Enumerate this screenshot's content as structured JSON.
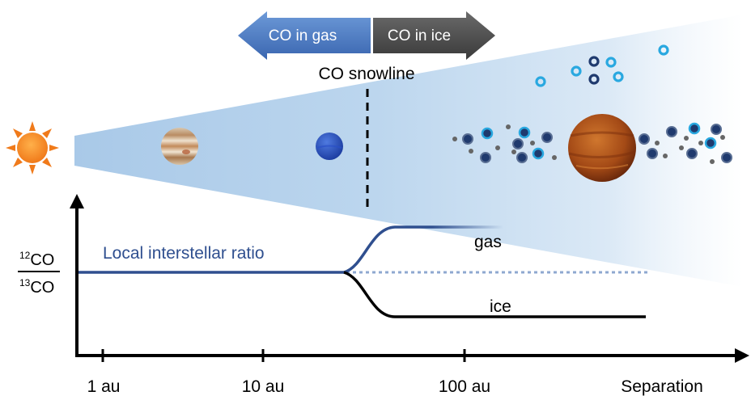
{
  "arrows": {
    "gas_label": "CO in gas",
    "ice_label": "CO in ice",
    "gas_color": "#4a7cc4",
    "ice_color": "#4a4a4a"
  },
  "snowline_label": "CO snowline",
  "plot": {
    "ylabel_top_sup": "12",
    "ylabel_top": "CO",
    "ylabel_bottom_sup": "13",
    "ylabel_bottom": "CO",
    "local_ratio_label": "Local interstellar ratio",
    "gas_label": "gas",
    "ice_label": "ice",
    "xticks": [
      "1 au",
      "10 au",
      "100 au"
    ],
    "xlabel": "Separation",
    "gas_color": "#2f4f8f",
    "ice_color": "#000000"
  },
  "icons": {
    "star": "sun-icon",
    "planet_1": "jupiter-like-planet-icon",
    "planet_2": "neptune-like-planet-icon",
    "planet_3": "hot-giant-planet-icon"
  }
}
